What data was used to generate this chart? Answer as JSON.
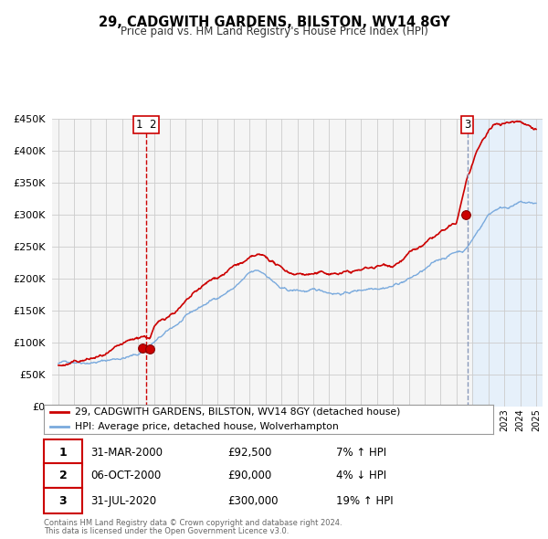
{
  "title": "29, CADGWITH GARDENS, BILSTON, WV14 8GY",
  "subtitle": "Price paid vs. HM Land Registry's House Price Index (HPI)",
  "legend_line1": "29, CADGWITH GARDENS, BILSTON, WV14 8GY (detached house)",
  "legend_line2": "HPI: Average price, detached house, Wolverhampton",
  "footer1": "Contains HM Land Registry data © Crown copyright and database right 2024.",
  "footer2": "This data is licensed under the Open Government Licence v3.0.",
  "transactions": [
    {
      "num": 1,
      "date": "31-MAR-2000",
      "price": "£92,500",
      "hpi": "7% ↑ HPI"
    },
    {
      "num": 2,
      "date": "06-OCT-2000",
      "price": "£90,000",
      "hpi": "4% ↓ HPI"
    },
    {
      "num": 3,
      "date": "31-JUL-2020",
      "price": "£300,000",
      "hpi": "19% ↑ HPI"
    }
  ],
  "sale_markers": [
    {
      "year": 2000.25,
      "price": 92500
    },
    {
      "year": 2000.75,
      "price": 90000
    },
    {
      "year": 2020.58,
      "price": 300000
    }
  ],
  "vline1_x": 2000.5,
  "vline2_x": 2020.67,
  "vline1_label": "1  2",
  "vline2_label": "3",
  "hpi_color": "#7aaadd",
  "price_color": "#cc0000",
  "vline1_color": "#cc0000",
  "vline2_color": "#8899bb",
  "shade_color": "#ddeeff",
  "marker_color": "#cc0000",
  "background_plot": "#f5f5f5",
  "background_fig": "#ffffff",
  "grid_color": "#cccccc",
  "ylim": [
    0,
    450000
  ],
  "xlim_start": 1994.6,
  "xlim_end": 2025.4,
  "shade_start": 2021.0,
  "shade_end": 2025.4
}
